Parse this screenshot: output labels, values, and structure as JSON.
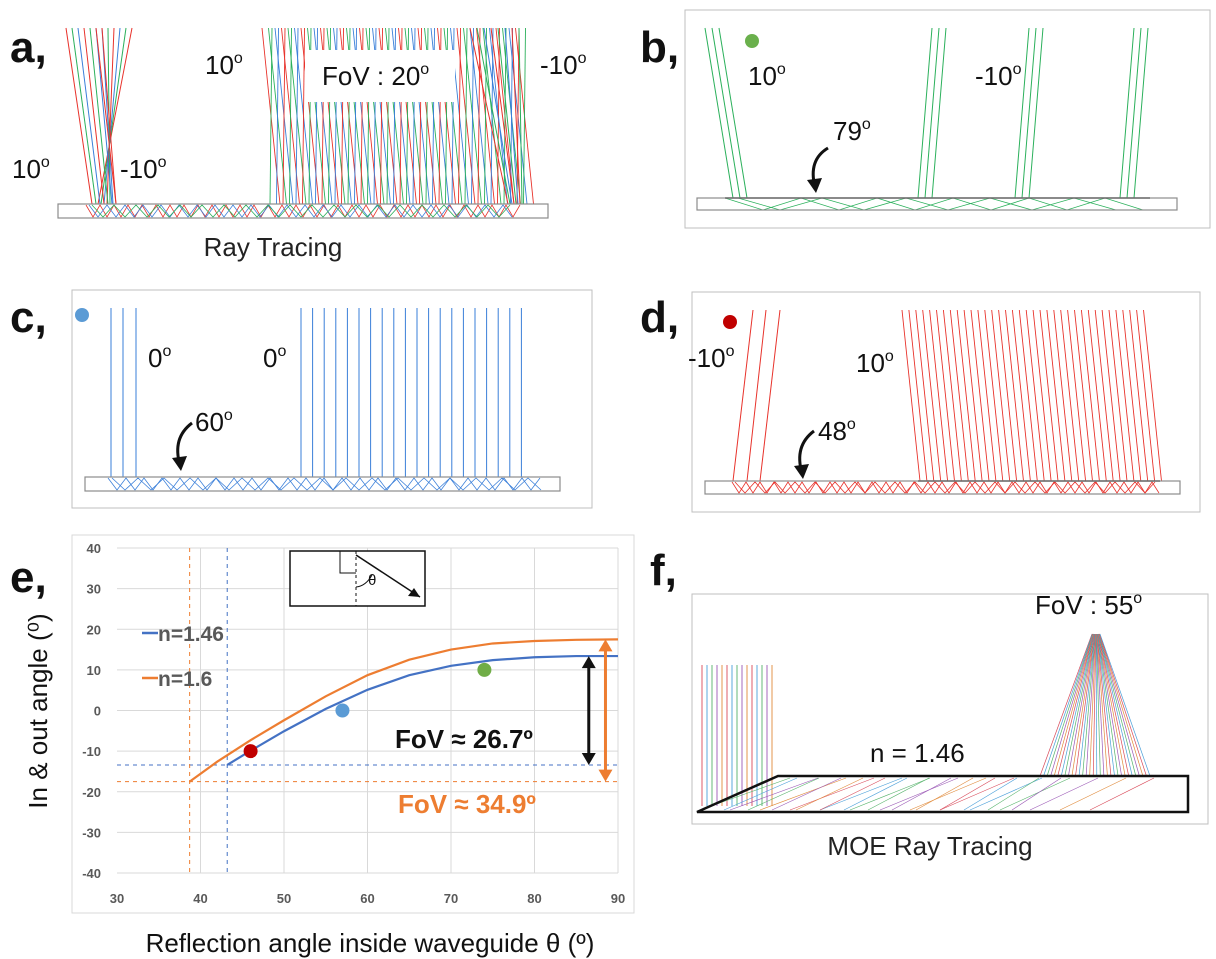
{
  "panel_labels": {
    "a": "a,",
    "b": "b,",
    "c": "c,",
    "d": "d,",
    "e": "e,",
    "f": "f,"
  },
  "panel_a": {
    "caption": "Ray Tracing",
    "fov": "FoV : 20",
    "deg": "o",
    "ann_10_mid": "10",
    "ann_m10_right": "-10",
    "ann_10_left": "10",
    "ann_m10_left": "-10"
  },
  "panel_b": {
    "a1": "10",
    "a2": "-10",
    "a3": "79",
    "deg": "o",
    "dot_color": "#6ab04c"
  },
  "panel_c": {
    "a1": "0",
    "a2": "0",
    "a3": "60",
    "deg": "o",
    "dot_color": "#5b9bd5"
  },
  "panel_d": {
    "a1": "-10",
    "a2": "10",
    "a3": "48",
    "deg": "o",
    "dot_color": "#c00000"
  },
  "panel_f": {
    "fov": "FoV : 55",
    "deg": "o",
    "index": "n = 1.46",
    "caption": "MOE Ray Tracing"
  },
  "colors": {
    "red": "#e8322b",
    "green": "#2bb05b",
    "blue": "#3a7fd9",
    "orange": "#ed7d31",
    "steel": "#4472c4"
  },
  "chart_data": {
    "type": "line",
    "xlabel": "Reflection angle inside waveguide θ (º)",
    "ylabel": "In & out angle (⁰)",
    "xlim": [
      30,
      90
    ],
    "ylim": [
      -40,
      40
    ],
    "x_ticks": [
      "30",
      "40",
      "50",
      "60",
      "70",
      "80",
      "90"
    ],
    "y_ticks": [
      "40",
      "30",
      "20",
      "10",
      "0",
      "-10",
      "-20",
      "-30",
      "-40"
    ],
    "grid": true,
    "legend_position": "left",
    "series": [
      {
        "name": "n=1.46",
        "color": "#4472c4",
        "x": [
          43.2,
          46,
          50,
          55,
          60,
          65,
          70,
          75,
          80,
          85,
          90
        ],
        "y": [
          -13.4,
          -9.9,
          -5.1,
          0.4,
          5.1,
          8.7,
          11.0,
          12.4,
          13.1,
          13.4,
          13.4
        ]
      },
      {
        "name": "n=1.6",
        "color": "#ed7d31",
        "x": [
          38.7,
          42,
          46,
          50,
          55,
          60,
          65,
          70,
          75,
          80,
          85,
          90
        ],
        "y": [
          -17.5,
          -12.6,
          -7.3,
          -2.4,
          3.5,
          8.7,
          12.5,
          15.0,
          16.5,
          17.1,
          17.4,
          17.5
        ]
      }
    ],
    "markers": [
      {
        "x": 46,
        "y": -10,
        "color": "#c00000"
      },
      {
        "x": 57,
        "y": 0,
        "color": "#5b9bd5"
      },
      {
        "x": 74,
        "y": 10,
        "color": "#70ad47"
      }
    ],
    "ref_lines": {
      "blue_v": 43.2,
      "blue_h": -13.4,
      "orange_v": 38.7,
      "orange_h": -17.5
    },
    "fov_black": {
      "text": "FoV ≈ 26.7º",
      "color": "#111111",
      "y_from": -13.4,
      "y_to": 13.4,
      "x": 86.5
    },
    "fov_orange": {
      "text": "FoV ≈ 34.9º",
      "color": "#ed7d31",
      "y_from": -17.5,
      "y_to": 17.5,
      "x": 88.5
    },
    "inset_symbol": "θ"
  }
}
